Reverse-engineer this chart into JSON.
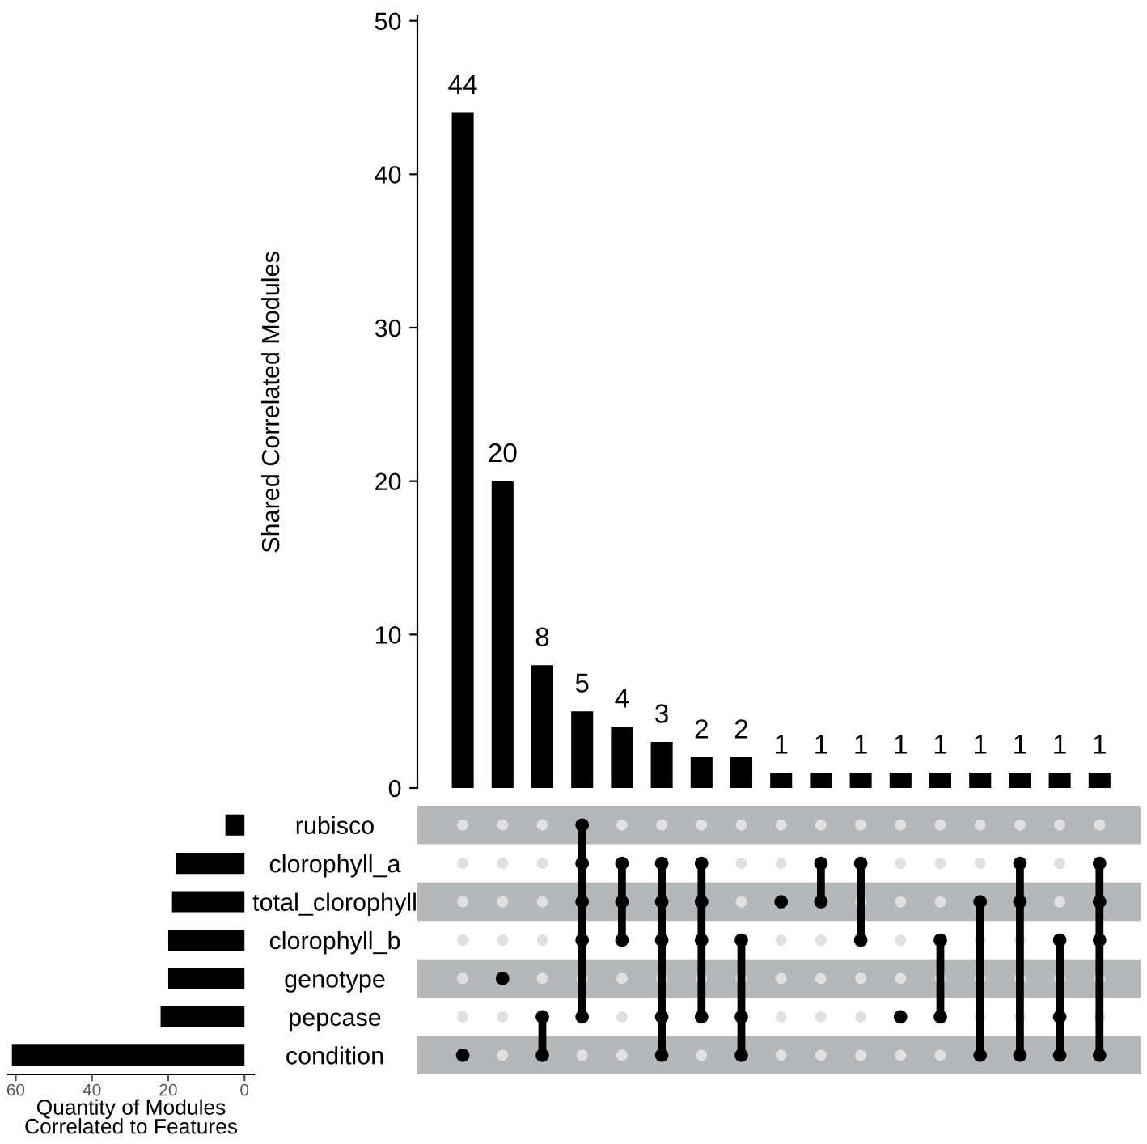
{
  "chart_data": [
    {
      "type": "bar",
      "ylabel": "Shared Correlated Modules",
      "categories": [
        null,
        null,
        null,
        null,
        null,
        null,
        null,
        null,
        null,
        null,
        null,
        null,
        null,
        null,
        null,
        null,
        null
      ],
      "values": [
        44,
        20,
        8,
        5,
        4,
        3,
        2,
        2,
        1,
        1,
        1,
        1,
        1,
        1,
        1,
        1,
        1
      ],
      "color": "#000000",
      "ylim": [
        0,
        50.3
      ],
      "yticks": [
        0,
        10,
        20,
        30,
        40,
        50
      ],
      "data_labels": true,
      "tick_labels": "y"
    },
    {
      "type": "bar",
      "orientation": "horizontal",
      "xlabel": "Quantity of Modules\nCorrelated to Features",
      "categories": [
        "rubisco",
        "clorophyll_a",
        "total_clorophyll",
        "clorophyll_b",
        "genotype",
        "pepcase",
        "condition"
      ],
      "values": [
        5,
        18,
        19,
        20,
        20,
        22,
        61
      ],
      "color": "#000000",
      "xlim": [
        62,
        -2.5
      ],
      "xticks": [
        0,
        20,
        40,
        60
      ]
    }
  ]
}
